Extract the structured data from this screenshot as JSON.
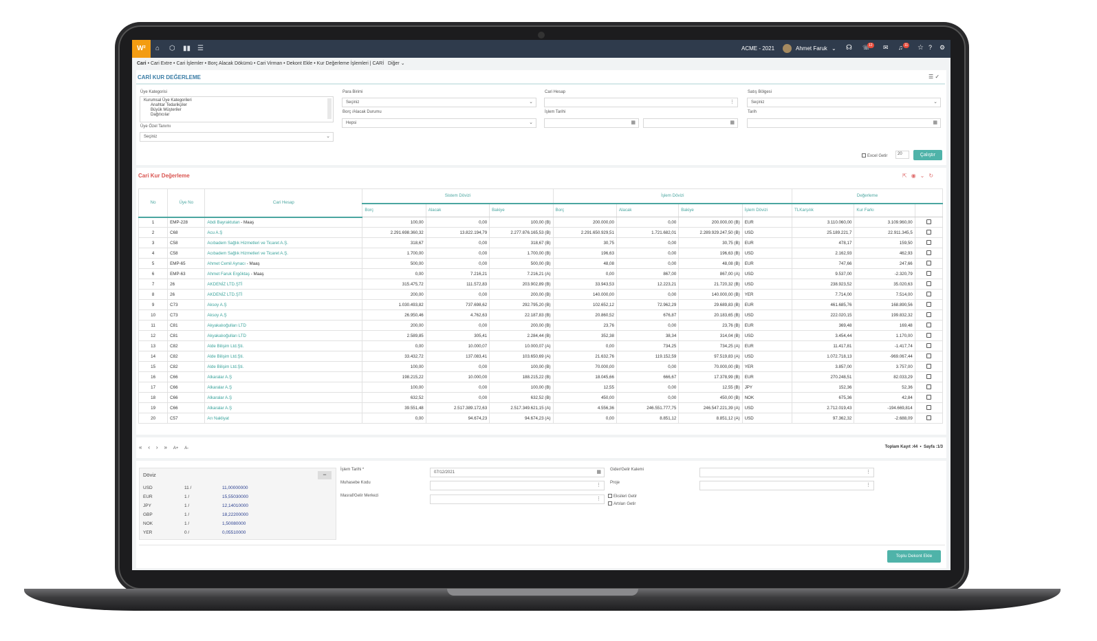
{
  "topbar": {
    "logo": "W²",
    "company": "ACME - 2021",
    "user": "Ahmet Faruk",
    "badge1": "12",
    "badge2": "11"
  },
  "breadcrumb": {
    "items": [
      "Cari",
      "Cari Extre",
      "Cari İşlemler",
      "Borç Alacak Dökümü",
      "Cari Virman",
      "Dekont Ekle",
      "Kur Değerleme İşlemleri | CARİ"
    ],
    "more": "Diğer"
  },
  "page_title": "CARİ KUR DEĞERLEME",
  "filters": {
    "uye_kategorisi": {
      "label": "Üye Kategorisi",
      "options": [
        "Kurumsal Üye Kategorileri",
        "Anahtar Tedarikçiler",
        "Büyük Müşteriler",
        "Dağıtıcılar"
      ]
    },
    "uye_ozel": {
      "label": "Üye Özel Tanımı",
      "value": "Seçiniz"
    },
    "para_birimi": {
      "label": "Para Birimi",
      "value": "Seçiniz"
    },
    "borc_alacak": {
      "label": "Borç /Alacak Durumu",
      "value": "Hepsi"
    },
    "cari_hesap": {
      "label": "Cari Hesap",
      "value": ""
    },
    "islem_tarihi": {
      "label": "İşlem Tarihi"
    },
    "satis_bolgesi": {
      "label": "Satış Bölgesi",
      "value": "Seçiniz"
    },
    "tarih": {
      "label": "Tarih"
    },
    "excel": "Excel Getir",
    "count": "20",
    "run": "Çalıştır"
  },
  "grid": {
    "title": "Cari Kur Değerleme",
    "groups": [
      "Sistem Dövizi",
      "İşlem Dövizi",
      "Değerleme"
    ],
    "fixed_headers": [
      "No",
      "Üye No",
      "Cari Hesap"
    ],
    "sub_headers": [
      "Borç",
      "Alacak",
      "Bakiye",
      "Borç",
      "Alacak",
      "Bakiye",
      "İşlem Dövizi",
      "TLKarşılık",
      "Kur Farkı"
    ],
    "rows": [
      [
        "1",
        "EMP-228",
        "Abdi Bayraktutan",
        "- Maaş",
        "100,00",
        "0,00",
        "100,00 (B)",
        "200.000,00",
        "0,00",
        "200.000,00 (B)",
        "EUR",
        "3.110.060,00",
        "3.109.960,00"
      ],
      [
        "2",
        "C68",
        "Acu A.Ş",
        "",
        "2.291.698.360,32",
        "13.822.194,79",
        "2.277.876.165,53 (B)",
        "2.291.650.929,51",
        "1.721.682,01",
        "2.289.929.247,50 (B)",
        "USD",
        "25.189.221,7",
        "22.911.345,5"
      ],
      [
        "3",
        "C58",
        "Acıbadem Sağlık Hizmetleri ve Ticaret A.Ş.",
        "",
        "318,67",
        "0,00",
        "318,67 (B)",
        "30,75",
        "0,00",
        "30,75 (B)",
        "EUR",
        "478,17",
        "159,50"
      ],
      [
        "4",
        "C58",
        "Acıbadem Sağlık Hizmetleri ve Ticaret A.Ş.",
        "",
        "1.700,00",
        "0,00",
        "1.700,00 (B)",
        "196,63",
        "0,00",
        "196,63 (B)",
        "USD",
        "2.162,93",
        "462,93"
      ],
      [
        "5",
        "EMP-65",
        "Ahmet Cemil Aynacı",
        "- Maaş",
        "500,00",
        "0,00",
        "500,00 (B)",
        "48,08",
        "0,00",
        "48,08 (B)",
        "EUR",
        "747,66",
        "247,66"
      ],
      [
        "6",
        "EMP-63",
        "Ahmet Faruk Ergöktaş",
        "- Maaş",
        "0,00",
        "7.216,21",
        "7.216,21 (A)",
        "0,00",
        "867,00",
        "867,00 (A)",
        "USD",
        "9.537,00",
        "-2.320,79"
      ],
      [
        "7",
        "26",
        "AKDENİZ LTD.ŞTİ",
        "",
        "315.475,72",
        "111.572,83",
        "203.902,89 (B)",
        "33.943,53",
        "12.223,21",
        "21.720,32 (B)",
        "USD",
        "238.923,52",
        "35.020,63"
      ],
      [
        "8",
        "26",
        "AKDENİZ LTD.ŞTİ",
        "",
        "200,00",
        "0,00",
        "200,00 (B)",
        "140.000,00",
        "0,00",
        "140.000,00 (B)",
        "YER",
        "7.714,00",
        "7.514,00"
      ],
      [
        "9",
        "C73",
        "Aksoy A.Ş",
        "",
        "1.030.493,82",
        "737.698,62",
        "292.795,20 (B)",
        "102.652,12",
        "72.962,29",
        "29.689,83 (B)",
        "EUR",
        "461.685,76",
        "168.890,56"
      ],
      [
        "10",
        "C73",
        "Aksoy A.Ş",
        "",
        "26.950,46",
        "4.762,63",
        "22.187,83 (B)",
        "20.860,52",
        "676,87",
        "20.183,65 (B)",
        "USD",
        "222.020,15",
        "199.832,32"
      ],
      [
        "11",
        "C81",
        "Akyakalıoğulları LTD",
        "",
        "200,00",
        "0,00",
        "200,00 (B)",
        "23,76",
        "0,00",
        "23,76 (B)",
        "EUR",
        "369,48",
        "169,48"
      ],
      [
        "12",
        "C81",
        "Akyakalıoğulları LTD",
        "",
        "2.589,85",
        "305,41",
        "2.284,44 (B)",
        "352,38",
        "38,34",
        "314,04 (B)",
        "USD",
        "3.454,44",
        "1.170,00"
      ],
      [
        "13",
        "C82",
        "Alde Bilişim Ltd.Şti.",
        "",
        "0,00",
        "10.000,07",
        "10.000,07 (A)",
        "0,00",
        "734,25",
        "734,25 (A)",
        "EUR",
        "11.417,81",
        "-1.417,74"
      ],
      [
        "14",
        "C82",
        "Alde Bilişim Ltd.Şti.",
        "",
        "33.432,72",
        "137.083,41",
        "103.650,69 (A)",
        "21.632,76",
        "119.152,59",
        "97.519,83 (A)",
        "USD",
        "1.072.718,13",
        "-969.067,44"
      ],
      [
        "15",
        "C82",
        "Alde Bilişim Ltd.Şti.",
        "",
        "100,00",
        "0,00",
        "100,00 (B)",
        "70.000,00",
        "0,00",
        "70.000,00 (B)",
        "YER",
        "3.857,00",
        "3.757,00"
      ],
      [
        "16",
        "C66",
        "Alkaralar A.Ş",
        "",
        "198.215,22",
        "10.000,00",
        "188.215,22 (B)",
        "18.045,66",
        "666,67",
        "17.378,99 (B)",
        "EUR",
        "270.248,51",
        "82.033,29"
      ],
      [
        "17",
        "C66",
        "Alkaralar A.Ş",
        "",
        "100,00",
        "0,00",
        "100,00 (B)",
        "12,55",
        "0,00",
        "12,55 (B)",
        "JPY",
        "152,36",
        "52,36"
      ],
      [
        "18",
        "C66",
        "Alkaralar A.Ş",
        "",
        "632,52",
        "0,00",
        "632,52 (B)",
        "450,00",
        "0,00",
        "450,00 (B)",
        "NOK",
        "675,36",
        "42,84"
      ],
      [
        "19",
        "C66",
        "Alkaralar A.Ş",
        "",
        "39.551,48",
        "2.517.389.172,63",
        "2.517.349.621,15 (A)",
        "4.556,36",
        "246.551.777,75",
        "246.547.221,39 (A)",
        "USD",
        "2.712.019,43",
        "-194.669,814"
      ],
      [
        "20",
        "C57",
        "Arı Nakliyat",
        "",
        "0,00",
        "94.674,23",
        "94.674,23 (A)",
        "0,00",
        "8.851,12",
        "8.851,12 (A)",
        "USD",
        "97.362,32",
        "-2.688,09"
      ]
    ]
  },
  "pager": {
    "buttons": [
      "«",
      "‹",
      "›",
      "»",
      "A+",
      "A-"
    ],
    "total_label": "Toplam Kayıt :",
    "total": "44",
    "page_label": "Sayfa :",
    "page": "1/3"
  },
  "doviz": {
    "title": "Döviz",
    "rows": [
      [
        "USD",
        "11 /",
        "11,00000000"
      ],
      [
        "EUR",
        "1 /",
        "15,55030000"
      ],
      [
        "JPY",
        "1 /",
        "12,14010000"
      ],
      [
        "GBP",
        "1 /",
        "18,22200000"
      ],
      [
        "NOK",
        "1 /",
        "1,50080000"
      ],
      [
        "YER",
        "0 /",
        "0,05510000"
      ]
    ]
  },
  "bottom_form": {
    "islem_tarihi_label": "İşlem Tarihi *",
    "islem_tarihi_value": "07/12/2021",
    "muhasebe_label": "Muhasebe Kodu",
    "masraf_label": "Masraf/Gelir Merkezi",
    "gider_label": "Gider/Gelir Kalemi",
    "proje_label": "Proje",
    "eksileri": "Eksileri Getir",
    "artilari": "Artıları Getir",
    "submit": "Toplu Dekont Ekle"
  }
}
